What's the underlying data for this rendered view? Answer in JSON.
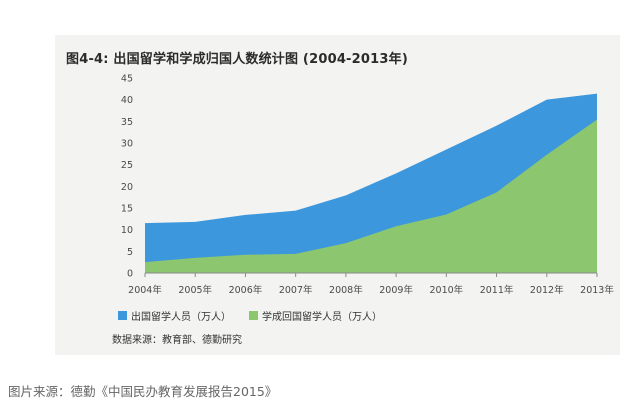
{
  "figure": {
    "title": "图4-4:   出国留学和学成归国人数统计图 (2004-2013年)",
    "source_note": "数据来源：教育部、德勤研究",
    "caption": "图片来源：德勤《中国民办教育发展报告2015》"
  },
  "chart_data": {
    "type": "area",
    "title": "图4-4:   出国留学和学成归国人数统计图 (2004-2013年)",
    "x": [
      "2004年",
      "2005年",
      "2006年",
      "2007年",
      "2008年",
      "2009年",
      "2010年",
      "2011年",
      "2012年",
      "2013年"
    ],
    "ylim": [
      0,
      45
    ],
    "yticks": [
      0,
      5,
      10,
      15,
      20,
      25,
      30,
      35,
      40,
      45
    ],
    "grid": false,
    "legend_position": "bottom",
    "series": [
      {
        "name": "出国留学人员（万人）",
        "color": "#3d97dc",
        "values": [
          11.5,
          11.8,
          13.4,
          14.4,
          17.9,
          23.0,
          28.5,
          34.0,
          40.0,
          41.4
        ]
      },
      {
        "name": "学成回国留学人员（万人）",
        "color": "#8cc76f",
        "values": [
          2.5,
          3.5,
          4.2,
          4.4,
          6.9,
          10.8,
          13.5,
          18.6,
          27.3,
          35.4
        ]
      }
    ]
  }
}
